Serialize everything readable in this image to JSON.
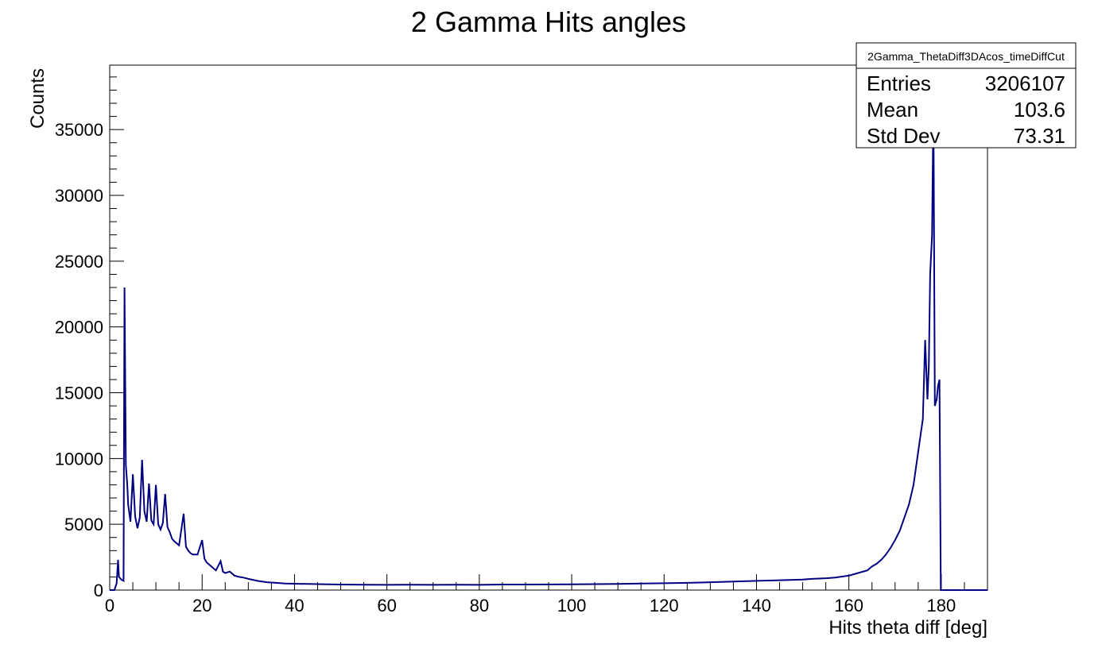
{
  "chart_data": {
    "type": "histogram",
    "title": "2 Gamma Hits angles",
    "xlabel": "Hits theta diff [deg]",
    "ylabel": "Counts",
    "xlim": [
      0,
      190
    ],
    "ylim": [
      0,
      39900
    ],
    "x_ticks": [
      0,
      20,
      40,
      60,
      80,
      100,
      120,
      140,
      160,
      180
    ],
    "y_ticks": [
      0,
      5000,
      10000,
      15000,
      20000,
      25000,
      30000,
      35000
    ],
    "line_color": "#000080",
    "grid": false,
    "legend": "none",
    "stats_box": {
      "name": "2Gamma_ThetaDiff3DAcos_timeDiffCut",
      "rows": [
        {
          "label": "Entries",
          "value": "3206107"
        },
        {
          "label": "Mean",
          "value": "103.6"
        },
        {
          "label": "Std Dev",
          "value": "73.31"
        }
      ]
    },
    "x": [
      0,
      1,
      1.5,
      1.8,
      2,
      2.5,
      3,
      3.2,
      3.5,
      3.8,
      4,
      4.5,
      5,
      5.5,
      6,
      6.5,
      7,
      7.5,
      8,
      8.5,
      9,
      9.5,
      10,
      10.5,
      11,
      11.5,
      12,
      12.5,
      13,
      13.5,
      14,
      15,
      16,
      16.5,
      17,
      17.5,
      18,
      19,
      20,
      20.5,
      21,
      22,
      23,
      24,
      24.5,
      25,
      26,
      27,
      28,
      29,
      30,
      32,
      34,
      36,
      38,
      40,
      45,
      50,
      55,
      60,
      65,
      70,
      75,
      80,
      85,
      90,
      95,
      100,
      105,
      110,
      115,
      120,
      125,
      130,
      135,
      140,
      145,
      150,
      152,
      155,
      157,
      160,
      162,
      164,
      165,
      166,
      167,
      168,
      169,
      170,
      171,
      172,
      173,
      174,
      175,
      176,
      176.5,
      177,
      177.3,
      177.6,
      178,
      178.3,
      178.6,
      179,
      179.3,
      179.6,
      179.9,
      180,
      181,
      190
    ],
    "values": [
      0,
      0,
      500,
      2300,
      1000,
      800,
      700,
      23000,
      9500,
      8000,
      6500,
      5200,
      8800,
      5600,
      4700,
      5500,
      9900,
      6000,
      5200,
      8100,
      5300,
      5000,
      8000,
      5000,
      4600,
      5100,
      7300,
      4800,
      4400,
      3900,
      3700,
      3400,
      5800,
      3300,
      3000,
      2800,
      2700,
      2700,
      3800,
      2400,
      2100,
      1800,
      1500,
      2200,
      1400,
      1300,
      1400,
      1100,
      1000,
      950,
      850,
      700,
      600,
      550,
      500,
      480,
      450,
      420,
      410,
      400,
      410,
      400,
      410,
      400,
      420,
      420,
      430,
      440,
      450,
      470,
      500,
      520,
      550,
      600,
      650,
      700,
      750,
      800,
      850,
      900,
      950,
      1100,
      1300,
      1500,
      1800,
      2000,
      2300,
      2700,
      3200,
      3800,
      4500,
      5500,
      6500,
      8000,
      10500,
      13000,
      19000,
      14500,
      17000,
      24000,
      27000,
      37000,
      14000,
      14500,
      15500,
      16000,
      0,
      0,
      0,
      0
    ]
  }
}
